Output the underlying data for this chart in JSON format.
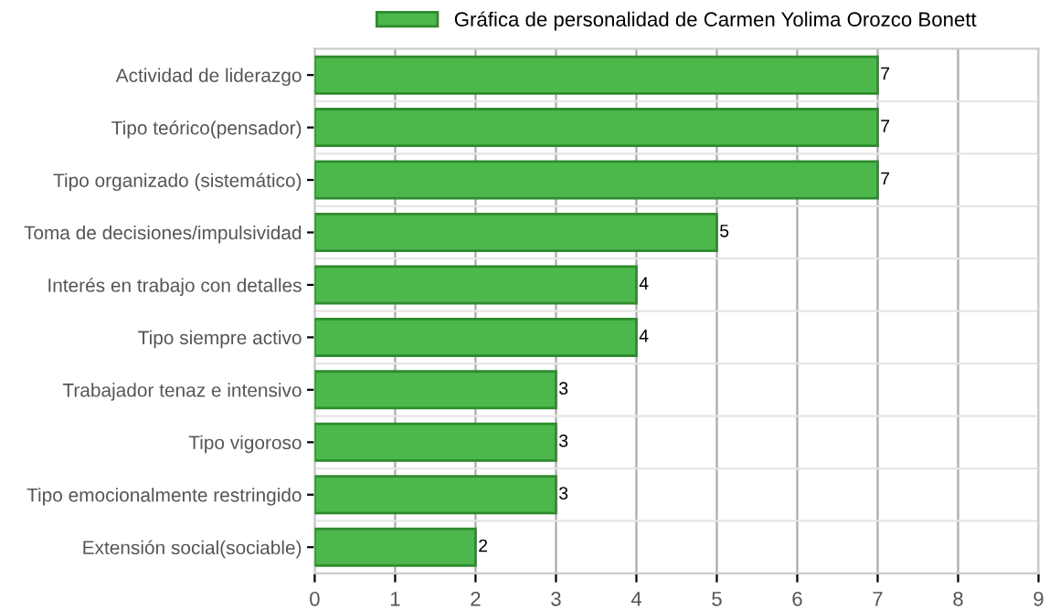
{
  "chart_data": {
    "type": "bar",
    "orientation": "horizontal",
    "categories": [
      "Actividad de liderazgo",
      "Tipo teórico(pensador)",
      "Tipo organizado (sistemático)",
      "Toma de decisiones/impulsividad",
      "Interés en trabajo con detalles",
      "Tipo siempre activo",
      "Trabajador tenaz e intensivo",
      "Tipo vigoroso",
      "Tipo emocionalmente restringido",
      "Extensión social(sociable)"
    ],
    "series": [
      {
        "name": "Gráfica de personalidad de Carmen Yolima Orozco Bonett",
        "color": "#4cb84c",
        "values": [
          7,
          7,
          7,
          5,
          4,
          4,
          3,
          3,
          3,
          2
        ]
      }
    ],
    "xlim": [
      0,
      9
    ],
    "xticks": [
      0,
      1,
      2,
      3,
      4,
      5,
      6,
      7,
      8,
      9
    ],
    "grid": true,
    "legend": "top",
    "data_labels": true
  }
}
